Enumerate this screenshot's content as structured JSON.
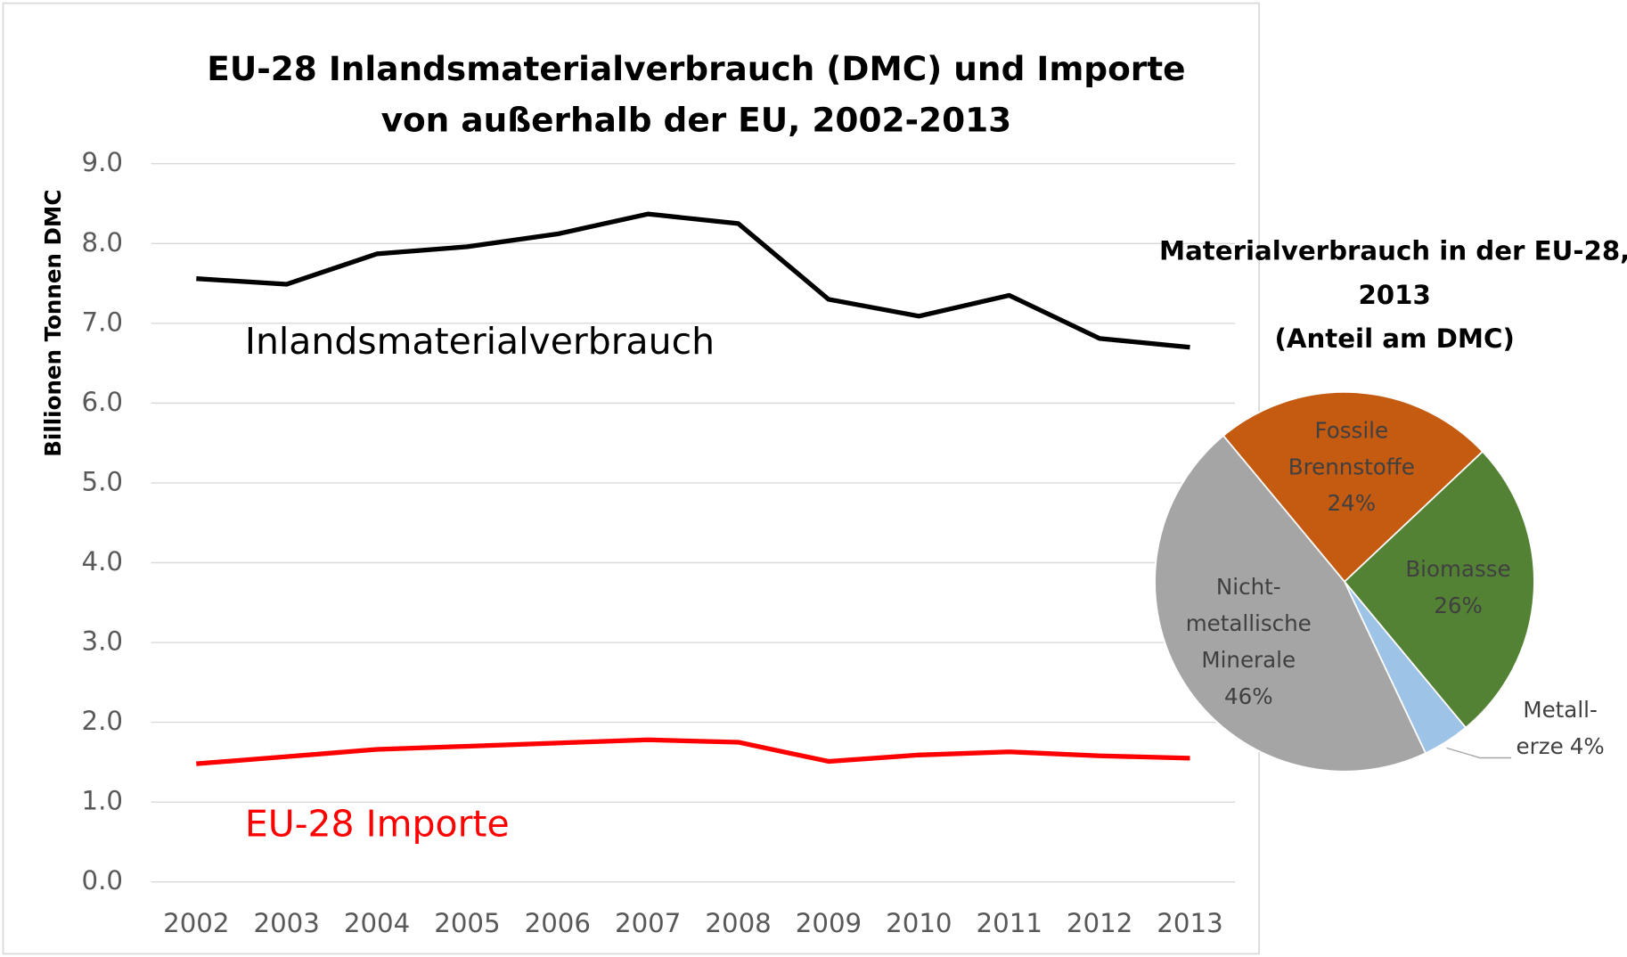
{
  "chart_data": [
    {
      "type": "line",
      "title": [
        "EU-28 Inlandsmaterialverbrauch (DMC) und Importe",
        "von außerhalb der EU, 2002-2013"
      ],
      "y_label": "Billionen Tonnen DMC",
      "categories": [
        "2002",
        "2003",
        "2004",
        "2005",
        "2006",
        "2007",
        "2008",
        "2009",
        "2010",
        "2011",
        "2012",
        "2013"
      ],
      "series": [
        {
          "name": "Inlandsmaterialverbrauch",
          "color": "#000000",
          "values": [
            7.56,
            7.49,
            7.87,
            7.96,
            8.12,
            8.37,
            8.25,
            7.3,
            7.09,
            7.35,
            6.81,
            6.7
          ]
        },
        {
          "name": "EU-28 Importe",
          "color": "#ff0000",
          "values": [
            1.48,
            1.57,
            1.66,
            1.7,
            1.74,
            1.78,
            1.75,
            1.51,
            1.59,
            1.63,
            1.58,
            1.55
          ]
        }
      ],
      "ylim": [
        0,
        9
      ],
      "yticks": [
        {
          "value": 0,
          "label": "0.0"
        },
        {
          "value": 1,
          "label": "1.0"
        },
        {
          "value": 2,
          "label": "2.0"
        },
        {
          "value": 3,
          "label": "3.0"
        },
        {
          "value": 4,
          "label": "4.0"
        },
        {
          "value": 5,
          "label": "5.0"
        },
        {
          "value": 6,
          "label": "6.0"
        },
        {
          "value": 7,
          "label": "7.0"
        },
        {
          "value": 8,
          "label": "8.0"
        },
        {
          "value": 9,
          "label": "9.0"
        }
      ],
      "grid": true
    },
    {
      "type": "pie",
      "title": [
        "Materialverbrauch in der EU-28,",
        "2013",
        "(Anteil am DMC)"
      ],
      "categories": [
        [
          "Fossile",
          "Brennstoffe"
        ],
        [
          "Biomasse"
        ],
        [
          "Metall-",
          "erze"
        ],
        [
          "Nicht-",
          "metallische",
          "Minerale"
        ]
      ],
      "values": [
        24,
        26,
        4,
        46
      ],
      "value_labels": [
        "24%",
        "26%",
        "4%",
        "46%"
      ],
      "colors": [
        "#c55a11",
        "#548235",
        "#9dc3e6",
        "#a5a5a5"
      ]
    }
  ]
}
